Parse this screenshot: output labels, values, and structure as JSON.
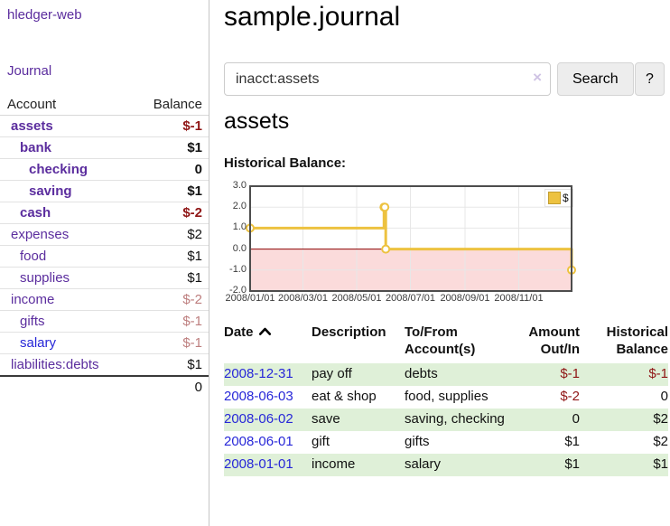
{
  "colors": {
    "purple_link": "#5b2d9e",
    "blue_link": "#2727d8",
    "negative_strong": "#8f1515",
    "negative_faded": "#bd7e7e",
    "row_stripe_green": "#dff0d8"
  },
  "app": {
    "brand": "hledger-web",
    "journal_nav": "Journal"
  },
  "sidebar": {
    "columns": [
      "Account",
      "Balance"
    ],
    "accounts": [
      {
        "name": "assets",
        "balance": "$-1",
        "indent": 1,
        "matched": true,
        "balance_tone": "neg-strong",
        "link_tone": "purple"
      },
      {
        "name": "bank",
        "balance": "$1",
        "indent": 2,
        "matched": true,
        "balance_tone": "pos",
        "link_tone": "purple"
      },
      {
        "name": "checking",
        "balance": "0",
        "indent": 3,
        "matched": true,
        "balance_tone": "pos",
        "link_tone": "purple"
      },
      {
        "name": "saving",
        "balance": "$1",
        "indent": 3,
        "matched": true,
        "balance_tone": "pos",
        "link_tone": "purple"
      },
      {
        "name": "cash",
        "balance": "$-2",
        "indent": 2,
        "matched": true,
        "balance_tone": "neg-strong",
        "link_tone": "purple"
      },
      {
        "name": "expenses",
        "balance": "$2",
        "indent": 1,
        "matched": false,
        "balance_tone": "pos",
        "link_tone": "purple"
      },
      {
        "name": "food",
        "balance": "$1",
        "indent": 2,
        "matched": false,
        "balance_tone": "pos",
        "link_tone": "purple"
      },
      {
        "name": "supplies",
        "balance": "$1",
        "indent": 2,
        "matched": false,
        "balance_tone": "pos",
        "link_tone": "purple"
      },
      {
        "name": "income",
        "balance": "$-2",
        "indent": 1,
        "matched": false,
        "balance_tone": "neg-faded",
        "link_tone": "purple"
      },
      {
        "name": "gifts",
        "balance": "$-1",
        "indent": 2,
        "matched": false,
        "balance_tone": "neg-faded",
        "link_tone": "purple"
      },
      {
        "name": "salary",
        "balance": "$-1",
        "indent": 2,
        "matched": false,
        "balance_tone": "neg-faded",
        "link_tone": "blue"
      },
      {
        "name": "liabilities:debts",
        "balance": "$1",
        "indent": 1,
        "matched": false,
        "balance_tone": "pos",
        "link_tone": "purple"
      }
    ],
    "total": "0"
  },
  "header": {
    "title": "sample.journal"
  },
  "search": {
    "value": "inacct:assets",
    "clear_icon": "×",
    "submit_label": "Search",
    "help_label": "?"
  },
  "account_page": {
    "heading": "assets",
    "section_label": "Historical Balance:"
  },
  "chart_data": {
    "type": "line",
    "step": true,
    "title": "Historical Balance",
    "legend": {
      "label": "$",
      "position": "top-right"
    },
    "xlim": [
      "2008-01-01",
      "2008-12-31"
    ],
    "ylim": [
      -2,
      3
    ],
    "yticks": [
      3,
      2,
      1,
      0,
      -1,
      -2
    ],
    "xticks": [
      "2008/01/01",
      "2008/03/01",
      "2008/05/01",
      "2008/07/01",
      "2008/09/01",
      "2008/11/01"
    ],
    "series": [
      {
        "name": "$",
        "points": [
          {
            "date": "2008-01-01",
            "value": 1
          },
          {
            "date": "2008-06-01",
            "value": 2
          },
          {
            "date": "2008-06-02",
            "value": 2
          },
          {
            "date": "2008-06-03",
            "value": 0
          },
          {
            "date": "2008-12-31",
            "value": -1
          }
        ]
      }
    ],
    "colors": {
      "line": "#edc240",
      "marker_fill": "#ffffff",
      "negative_region": "#fbdbdb",
      "zero_line": "#8b0000",
      "grid": "#e7e7e7",
      "border": "#4d4d4d"
    }
  },
  "register": {
    "headers": {
      "date": "Date",
      "description": "Description",
      "account": "To/From Account(s)",
      "amount": "Amount Out/In",
      "balance": "Historical Balance"
    },
    "sort": {
      "column": "date",
      "direction": "ascending"
    },
    "rows": [
      {
        "date": "2008-12-31",
        "description": "pay off",
        "account": "debts",
        "amount": "$-1",
        "balance": "$-1",
        "amount_negative": true,
        "balance_negative": true,
        "shaded": true
      },
      {
        "date": "2008-06-03",
        "description": "eat & shop",
        "account": "food, supplies",
        "amount": "$-2",
        "balance": "0",
        "amount_negative": true,
        "balance_negative": false,
        "shaded": false
      },
      {
        "date": "2008-06-02",
        "description": "save",
        "account": "saving, checking",
        "amount": "0",
        "balance": "$2",
        "amount_negative": false,
        "balance_negative": false,
        "shaded": true
      },
      {
        "date": "2008-06-01",
        "description": "gift",
        "account": "gifts",
        "amount": "$1",
        "balance": "$2",
        "amount_negative": false,
        "balance_negative": false,
        "shaded": false
      },
      {
        "date": "2008-01-01",
        "description": "income",
        "account": "salary",
        "amount": "$1",
        "balance": "$1",
        "amount_negative": false,
        "balance_negative": false,
        "shaded": true
      }
    ]
  }
}
